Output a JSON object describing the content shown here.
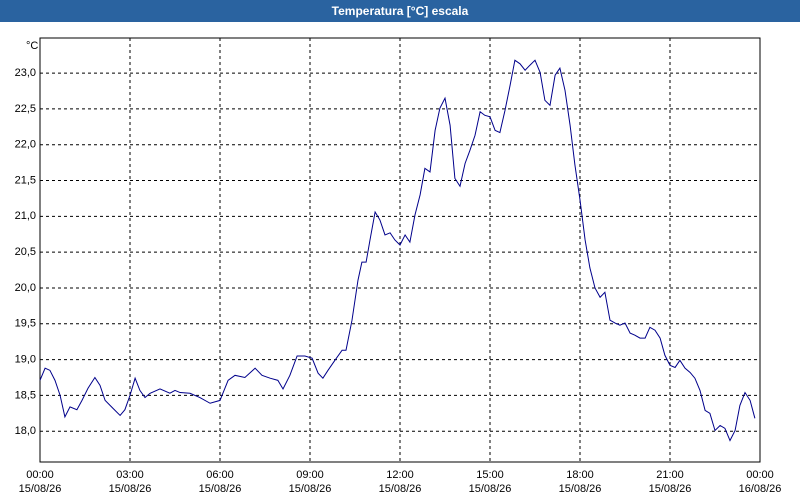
{
  "chart_data": {
    "type": "line",
    "title": "Temperatura [°C] escala",
    "y_label": "°C",
    "xlim": [
      0,
      24
    ],
    "ylim": [
      17.57,
      23.49
    ],
    "grid": true,
    "xticks": [
      {
        "value": 0,
        "label": "00:00\n15/08/26"
      },
      {
        "value": 3,
        "label": "03:00\n15/08/26"
      },
      {
        "value": 6,
        "label": "06:00\n15/08/26"
      },
      {
        "value": 9,
        "label": "09:00\n15/08/26"
      },
      {
        "value": 12,
        "label": "12:00\n15/08/26"
      },
      {
        "value": 15,
        "label": "15:00\n15/08/26"
      },
      {
        "value": 18,
        "label": "18:00\n15/08/26"
      },
      {
        "value": 21,
        "label": "21:00\n15/08/26"
      },
      {
        "value": 24,
        "label": "00:00\n16/08/26"
      }
    ],
    "yticks": [
      {
        "value": 18,
        "label": "18,0"
      },
      {
        "value": 18.5,
        "label": "18,5"
      },
      {
        "value": 19,
        "label": "19,0"
      },
      {
        "value": 19.5,
        "label": "19,5"
      },
      {
        "value": 20,
        "label": "20,0"
      },
      {
        "value": 20.5,
        "label": "20,5"
      },
      {
        "value": 21,
        "label": "21,0"
      },
      {
        "value": 21.5,
        "label": "21,5"
      },
      {
        "value": 22,
        "label": "22,0"
      },
      {
        "value": 22.5,
        "label": "22,5"
      },
      {
        "value": 23,
        "label": "23,0"
      }
    ],
    "series": [
      {
        "color": "#00008b",
        "x": [
          0,
          0.17,
          0.33,
          0.5,
          0.67,
          0.83,
          1,
          1.23,
          1.4,
          1.6,
          1.83,
          2,
          2.17,
          2.43,
          2.67,
          2.83,
          3,
          3.17,
          3.33,
          3.5,
          3.67,
          4,
          4.33,
          4.5,
          4.67,
          5,
          5.33,
          5.67,
          6,
          6.27,
          6.5,
          6.83,
          7.17,
          7.4,
          7.67,
          7.93,
          8.1,
          8.33,
          8.57,
          8.83,
          9.07,
          9.27,
          9.43,
          9.6,
          9.83,
          10.07,
          10.2,
          10.4,
          10.6,
          10.73,
          10.87,
          11,
          11.17,
          11.33,
          11.5,
          11.67,
          11.83,
          12,
          12.17,
          12.33,
          12.5,
          12.67,
          12.83,
          13,
          13.17,
          13.33,
          13.5,
          13.67,
          13.83,
          14,
          14.17,
          14.33,
          14.5,
          14.67,
          14.83,
          15,
          15.17,
          15.33,
          15.5,
          15.67,
          15.83,
          16,
          16.17,
          16.33,
          16.5,
          16.67,
          16.83,
          17,
          17.17,
          17.33,
          17.5,
          17.67,
          17.83,
          18,
          18.17,
          18.33,
          18.5,
          18.67,
          18.83,
          19,
          19.17,
          19.33,
          19.5,
          19.67,
          19.83,
          20,
          20.17,
          20.33,
          20.5,
          20.67,
          20.83,
          21,
          21.17,
          21.33,
          21.5,
          21.67,
          21.83,
          22,
          22.17,
          22.33,
          22.5,
          22.67,
          22.83,
          23,
          23.17,
          23.33,
          23.5,
          23.67,
          23.83
        ],
        "values": [
          18.71,
          18.88,
          18.85,
          18.71,
          18.5,
          18.2,
          18.34,
          18.3,
          18.43,
          18.6,
          18.75,
          18.64,
          18.43,
          18.32,
          18.22,
          18.3,
          18.5,
          18.74,
          18.57,
          18.47,
          18.53,
          18.59,
          18.53,
          18.57,
          18.54,
          18.53,
          18.47,
          18.39,
          18.43,
          18.71,
          18.78,
          18.75,
          18.88,
          18.78,
          18.74,
          18.71,
          18.59,
          18.78,
          19.05,
          19.05,
          19.02,
          18.81,
          18.74,
          18.85,
          18.99,
          19.13,
          19.13,
          19.55,
          20.11,
          20.36,
          20.36,
          20.67,
          21.06,
          20.95,
          20.74,
          20.77,
          20.67,
          20.6,
          20.74,
          20.64,
          21.02,
          21.3,
          21.67,
          21.62,
          22.2,
          22.51,
          22.65,
          22.27,
          21.53,
          21.42,
          21.74,
          21.92,
          22.13,
          22.46,
          22.41,
          22.39,
          22.2,
          22.17,
          22.48,
          22.83,
          23.18,
          23.13,
          23.04,
          23.11,
          23.18,
          23.01,
          22.62,
          22.55,
          22.97,
          23.07,
          22.76,
          22.27,
          21.72,
          21.23,
          20.67,
          20.28,
          20.0,
          19.87,
          19.94,
          19.55,
          19.51,
          19.48,
          19.51,
          19.37,
          19.34,
          19.3,
          19.3,
          19.45,
          19.41,
          19.3,
          19.06,
          18.92,
          18.89,
          18.99,
          18.88,
          18.82,
          18.74,
          18.57,
          18.29,
          18.25,
          18.01,
          18.08,
          18.04,
          17.87,
          18.01,
          18.36,
          18.54,
          18.43,
          18.18
        ]
      }
    ]
  }
}
